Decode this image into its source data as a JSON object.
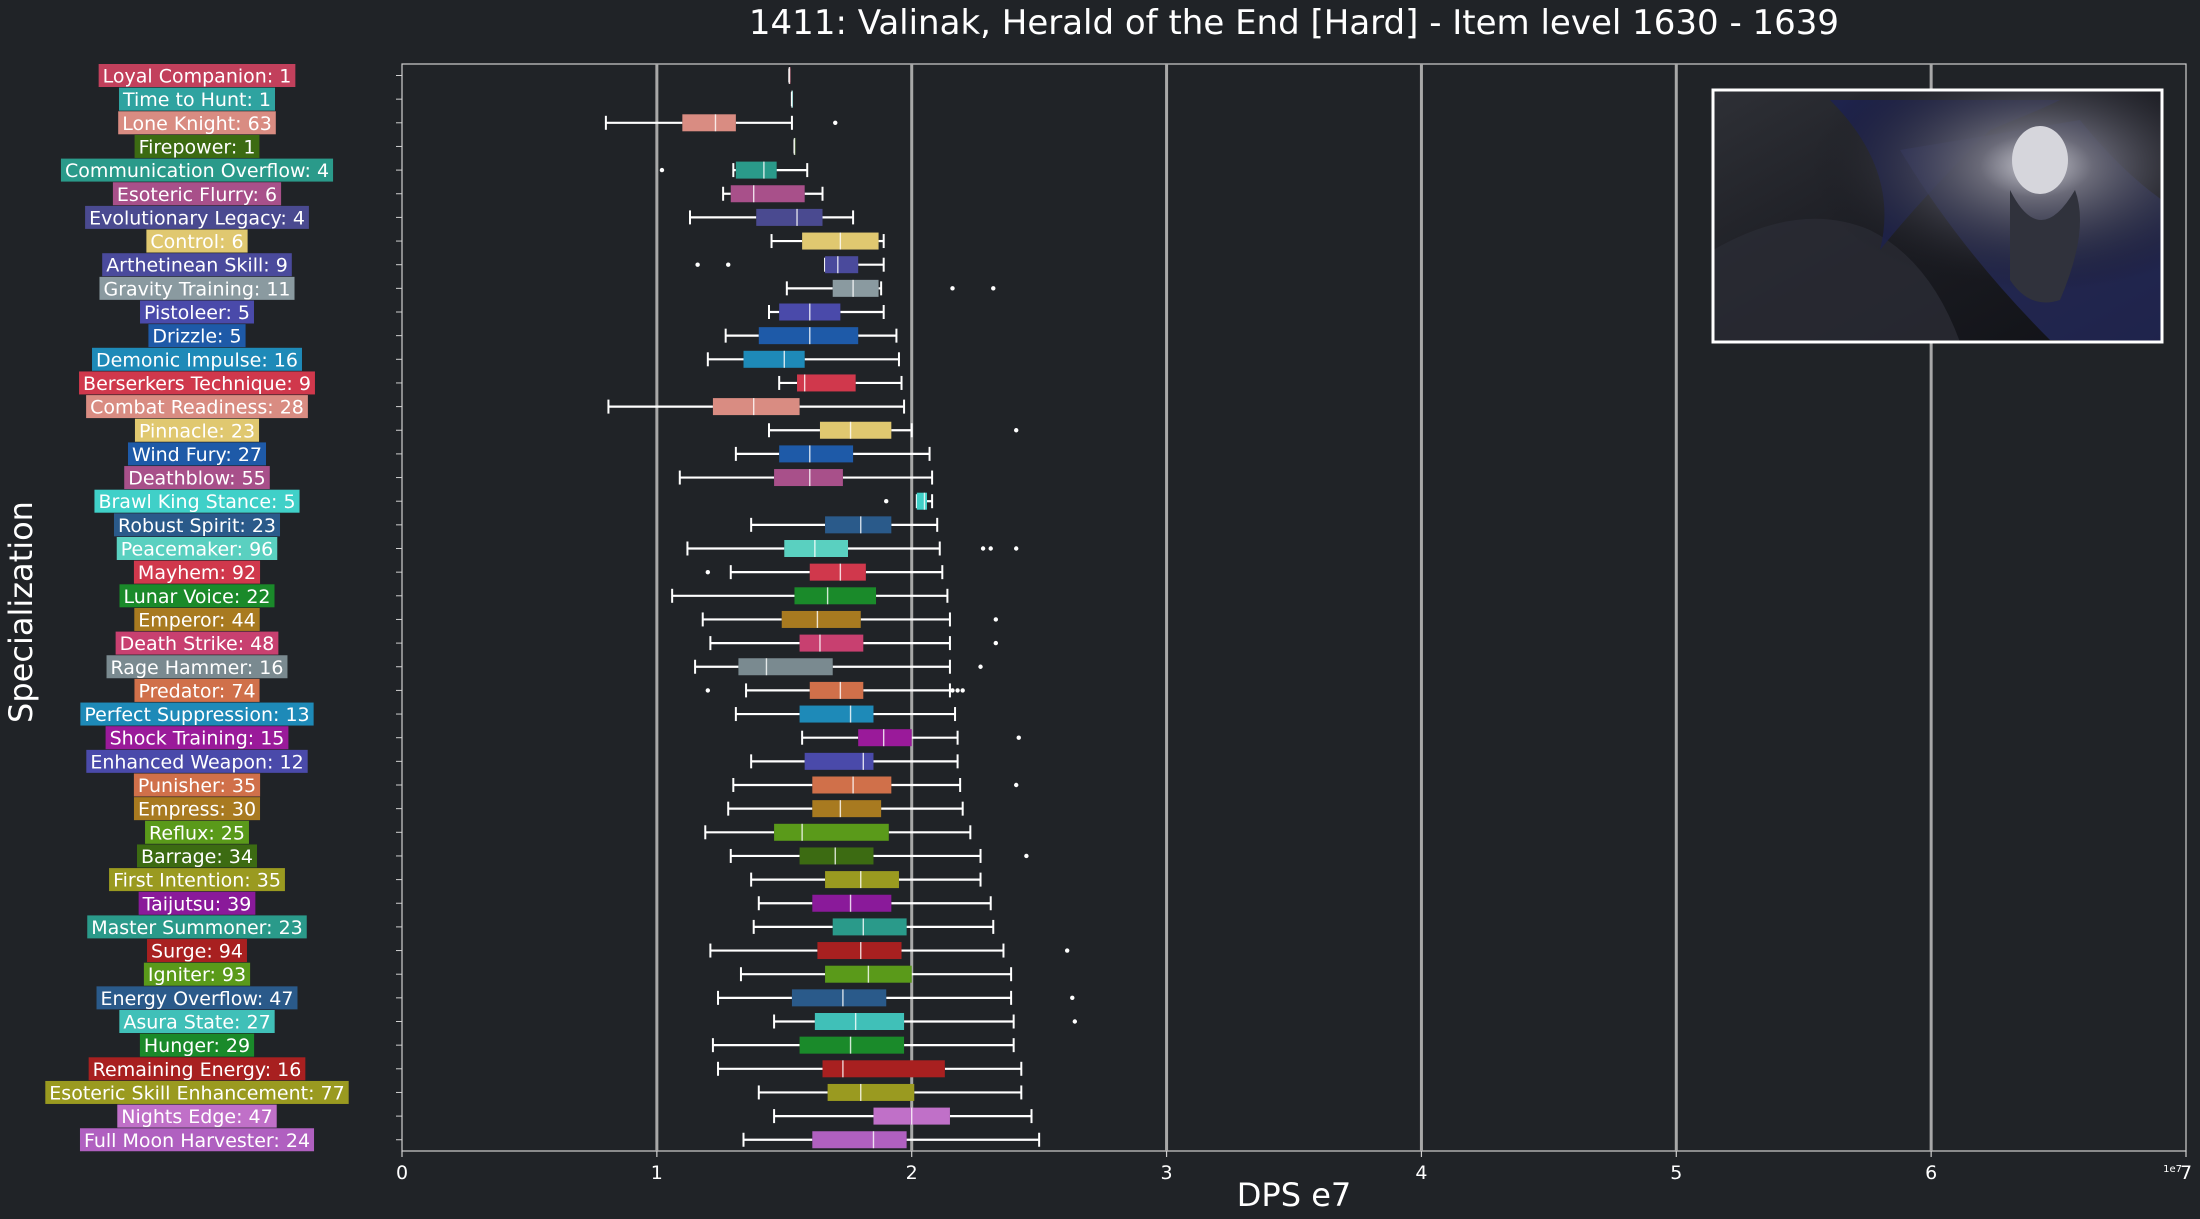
{
  "chart_data": {
    "type": "boxplot",
    "title": "1411: Valinak, Herald of the End [Hard] - Item level 1630 - 1639",
    "xlabel": "DPS e7",
    "ylabel": "Specialization",
    "x_offset_label": "1e7",
    "xlim": [
      0,
      7
    ],
    "xticks": [
      "0",
      "1",
      "2",
      "3",
      "4",
      "5",
      "6",
      "7"
    ],
    "grid": "vertical",
    "inset_image": "boss-portrait",
    "series": [
      {
        "label": "Loyal Companion: 1",
        "color": "#c2405c",
        "whislo": 1.52,
        "q1": 1.52,
        "med": 1.52,
        "q3": 1.52,
        "whishi": 1.52,
        "fliers": []
      },
      {
        "label": "Time to Hunt: 1",
        "color": "#2fa3a0",
        "whislo": 1.53,
        "q1": 1.53,
        "med": 1.53,
        "q3": 1.53,
        "whishi": 1.53,
        "fliers": []
      },
      {
        "label": "Lone Knight: 63",
        "color": "#d98c82",
        "whislo": 0.8,
        "q1": 1.1,
        "med": 1.23,
        "q3": 1.31,
        "whishi": 1.53,
        "fliers": [
          1.7
        ]
      },
      {
        "label": "Firepower: 1",
        "color": "#3c6b12",
        "whislo": 1.54,
        "q1": 1.54,
        "med": 1.54,
        "q3": 1.54,
        "whishi": 1.54,
        "fliers": []
      },
      {
        "label": "Communication Overflow: 4",
        "color": "#2a9a8a",
        "whislo": 1.3,
        "q1": 1.31,
        "med": 1.42,
        "q3": 1.47,
        "whishi": 1.59,
        "fliers": [
          1.02
        ]
      },
      {
        "label": "Esoteric Flurry: 6",
        "color": "#a8508a",
        "whislo": 1.26,
        "q1": 1.29,
        "med": 1.38,
        "q3": 1.58,
        "whishi": 1.65,
        "fliers": []
      },
      {
        "label": "Evolutionary Legacy: 4",
        "color": "#4a4a90",
        "whislo": 1.13,
        "q1": 1.39,
        "med": 1.55,
        "q3": 1.65,
        "whishi": 1.77,
        "fliers": []
      },
      {
        "label": "Control: 6",
        "color": "#e0c870",
        "whislo": 1.45,
        "q1": 1.57,
        "med": 1.72,
        "q3": 1.87,
        "whishi": 1.89,
        "fliers": []
      },
      {
        "label": "Arthetinean Skill: 9",
        "color": "#4a4a9c",
        "whislo": 1.66,
        "q1": 1.66,
        "med": 1.71,
        "q3": 1.79,
        "whishi": 1.89,
        "fliers": [
          1.16,
          1.28
        ]
      },
      {
        "label": "Gravity Training: 11",
        "color": "#8a9aa0",
        "whislo": 1.51,
        "q1": 1.69,
        "med": 1.77,
        "q3": 1.87,
        "whishi": 1.88,
        "fliers": [
          2.16,
          2.32
        ]
      },
      {
        "label": "Pistoleer: 5",
        "color": "#4a4aaa",
        "whislo": 1.44,
        "q1": 1.48,
        "med": 1.6,
        "q3": 1.72,
        "whishi": 1.89,
        "fliers": []
      },
      {
        "label": "Drizzle: 5",
        "color": "#1e5aa8",
        "whislo": 1.27,
        "q1": 1.4,
        "med": 1.6,
        "q3": 1.79,
        "whishi": 1.94,
        "fliers": []
      },
      {
        "label": "Demonic Impulse: 16",
        "color": "#1e8ab8",
        "whislo": 1.2,
        "q1": 1.34,
        "med": 1.5,
        "q3": 1.58,
        "whishi": 1.95,
        "fliers": []
      },
      {
        "label": "Berserkers Technique: 9",
        "color": "#d0384c",
        "whislo": 1.48,
        "q1": 1.55,
        "med": 1.58,
        "q3": 1.78,
        "whishi": 1.96,
        "fliers": []
      },
      {
        "label": "Combat Readiness: 28",
        "color": "#d98c82",
        "whislo": 0.81,
        "q1": 1.22,
        "med": 1.38,
        "q3": 1.56,
        "whishi": 1.97,
        "fliers": []
      },
      {
        "label": "Pinnacle: 23",
        "color": "#e0c870",
        "whislo": 1.44,
        "q1": 1.64,
        "med": 1.76,
        "q3": 1.92,
        "whishi": 2.0,
        "fliers": [
          2.41
        ]
      },
      {
        "label": "Wind Fury: 27",
        "color": "#1e5aa8",
        "whislo": 1.31,
        "q1": 1.48,
        "med": 1.6,
        "q3": 1.77,
        "whishi": 2.07,
        "fliers": []
      },
      {
        "label": "Deathblow: 55",
        "color": "#a8508a",
        "whislo": 1.09,
        "q1": 1.46,
        "med": 1.6,
        "q3": 1.73,
        "whishi": 2.08,
        "fliers": []
      },
      {
        "label": "Brawl King Stance: 5",
        "color": "#40d0c8",
        "whislo": 2.02,
        "q1": 2.02,
        "med": 2.05,
        "q3": 2.06,
        "whishi": 2.08,
        "fliers": [
          1.9
        ]
      },
      {
        "label": "Robust Spirit: 23",
        "color": "#2a5a8a",
        "whislo": 1.37,
        "q1": 1.66,
        "med": 1.8,
        "q3": 1.92,
        "whishi": 2.1,
        "fliers": []
      },
      {
        "label": "Peacemaker: 96",
        "color": "#5ad0c0",
        "whislo": 1.12,
        "q1": 1.5,
        "med": 1.62,
        "q3": 1.75,
        "whishi": 2.11,
        "fliers": [
          2.28,
          2.31,
          2.41
        ]
      },
      {
        "label": "Mayhem: 92",
        "color": "#d0384c",
        "whislo": 1.29,
        "q1": 1.6,
        "med": 1.72,
        "q3": 1.82,
        "whishi": 2.12,
        "fliers": [
          1.2
        ]
      },
      {
        "label": "Lunar Voice: 22",
        "color": "#1a8a2a",
        "whislo": 1.06,
        "q1": 1.54,
        "med": 1.67,
        "q3": 1.86,
        "whishi": 2.14,
        "fliers": []
      },
      {
        "label": "Emperor: 44",
        "color": "#a87a20",
        "whislo": 1.18,
        "q1": 1.49,
        "med": 1.63,
        "q3": 1.8,
        "whishi": 2.15,
        "fliers": [
          2.33
        ]
      },
      {
        "label": "Death Strike: 48",
        "color": "#c84070",
        "whislo": 1.21,
        "q1": 1.56,
        "med": 1.64,
        "q3": 1.81,
        "whishi": 2.15,
        "fliers": [
          2.33
        ]
      },
      {
        "label": "Rage Hammer: 16",
        "color": "#7a8a90",
        "whislo": 1.15,
        "q1": 1.32,
        "med": 1.43,
        "q3": 1.69,
        "whishi": 2.15,
        "fliers": [
          2.27
        ]
      },
      {
        "label": "Predator: 74",
        "color": "#d0704a",
        "whislo": 1.35,
        "q1": 1.6,
        "med": 1.72,
        "q3": 1.81,
        "whishi": 2.15,
        "fliers": [
          1.2,
          2.16,
          2.18,
          2.2
        ]
      },
      {
        "label": "Perfect Suppression: 13",
        "color": "#1e8ab8",
        "whislo": 1.31,
        "q1": 1.56,
        "med": 1.76,
        "q3": 1.85,
        "whishi": 2.17,
        "fliers": []
      },
      {
        "label": "Shock Training: 15",
        "color": "#9a1a9a",
        "whislo": 1.57,
        "q1": 1.79,
        "med": 1.89,
        "q3": 2.0,
        "whishi": 2.18,
        "fliers": [
          2.42
        ]
      },
      {
        "label": "Enhanced Weapon: 12",
        "color": "#4a4aaa",
        "whislo": 1.37,
        "q1": 1.58,
        "med": 1.81,
        "q3": 1.85,
        "whishi": 2.18,
        "fliers": []
      },
      {
        "label": "Punisher: 35",
        "color": "#d0704a",
        "whislo": 1.3,
        "q1": 1.61,
        "med": 1.77,
        "q3": 1.92,
        "whishi": 2.19,
        "fliers": [
          2.41
        ]
      },
      {
        "label": "Empress: 30",
        "color": "#a87a20",
        "whislo": 1.28,
        "q1": 1.61,
        "med": 1.72,
        "q3": 1.88,
        "whishi": 2.2,
        "fliers": []
      },
      {
        "label": "Reflux: 25",
        "color": "#5a9a1a",
        "whislo": 1.19,
        "q1": 1.46,
        "med": 1.57,
        "q3": 1.91,
        "whishi": 2.23,
        "fliers": []
      },
      {
        "label": "Barrage: 34",
        "color": "#3c6b12",
        "whislo": 1.29,
        "q1": 1.56,
        "med": 1.7,
        "q3": 1.85,
        "whishi": 2.27,
        "fliers": [
          2.45
        ]
      },
      {
        "label": "First Intention: 35",
        "color": "#9a9a20",
        "whislo": 1.37,
        "q1": 1.66,
        "med": 1.8,
        "q3": 1.95,
        "whishi": 2.27,
        "fliers": []
      },
      {
        "label": "Taijutsu: 39",
        "color": "#8a1a9a",
        "whislo": 1.4,
        "q1": 1.61,
        "med": 1.76,
        "q3": 1.92,
        "whishi": 2.31,
        "fliers": []
      },
      {
        "label": "Master Summoner: 23",
        "color": "#2a9a8a",
        "whislo": 1.38,
        "q1": 1.69,
        "med": 1.81,
        "q3": 1.98,
        "whishi": 2.32,
        "fliers": []
      },
      {
        "label": "Surge: 94",
        "color": "#a82020",
        "whislo": 1.21,
        "q1": 1.63,
        "med": 1.8,
        "q3": 1.96,
        "whishi": 2.36,
        "fliers": [
          2.61
        ]
      },
      {
        "label": "Igniter: 93",
        "color": "#5a9a1a",
        "whislo": 1.33,
        "q1": 1.66,
        "med": 1.83,
        "q3": 2.0,
        "whishi": 2.39,
        "fliers": []
      },
      {
        "label": "Energy Overflow: 47",
        "color": "#2a5a8a",
        "whislo": 1.24,
        "q1": 1.53,
        "med": 1.73,
        "q3": 1.9,
        "whishi": 2.39,
        "fliers": [
          2.63
        ]
      },
      {
        "label": "Asura State: 27",
        "color": "#40c0b8",
        "whislo": 1.46,
        "q1": 1.62,
        "med": 1.78,
        "q3": 1.97,
        "whishi": 2.4,
        "fliers": [
          2.64
        ]
      },
      {
        "label": "Hunger: 29",
        "color": "#1a8a2a",
        "whislo": 1.22,
        "q1": 1.56,
        "med": 1.76,
        "q3": 1.97,
        "whishi": 2.4,
        "fliers": []
      },
      {
        "label": "Remaining Energy: 16",
        "color": "#a82020",
        "whislo": 1.24,
        "q1": 1.65,
        "med": 1.73,
        "q3": 2.13,
        "whishi": 2.43,
        "fliers": []
      },
      {
        "label": "Esoteric Skill Enhancement: 77",
        "color": "#9a9a20",
        "whislo": 1.4,
        "q1": 1.67,
        "med": 1.8,
        "q3": 2.01,
        "whishi": 2.43,
        "fliers": []
      },
      {
        "label": "Nights Edge: 47",
        "color": "#c070c8",
        "whislo": 1.46,
        "q1": 1.85,
        "med": 2.0,
        "q3": 2.15,
        "whishi": 2.47,
        "fliers": []
      },
      {
        "label": "Full Moon Harvester: 24",
        "color": "#b060c0",
        "whislo": 1.34,
        "q1": 1.61,
        "med": 1.85,
        "q3": 1.98,
        "whishi": 2.5,
        "fliers": []
      }
    ]
  }
}
